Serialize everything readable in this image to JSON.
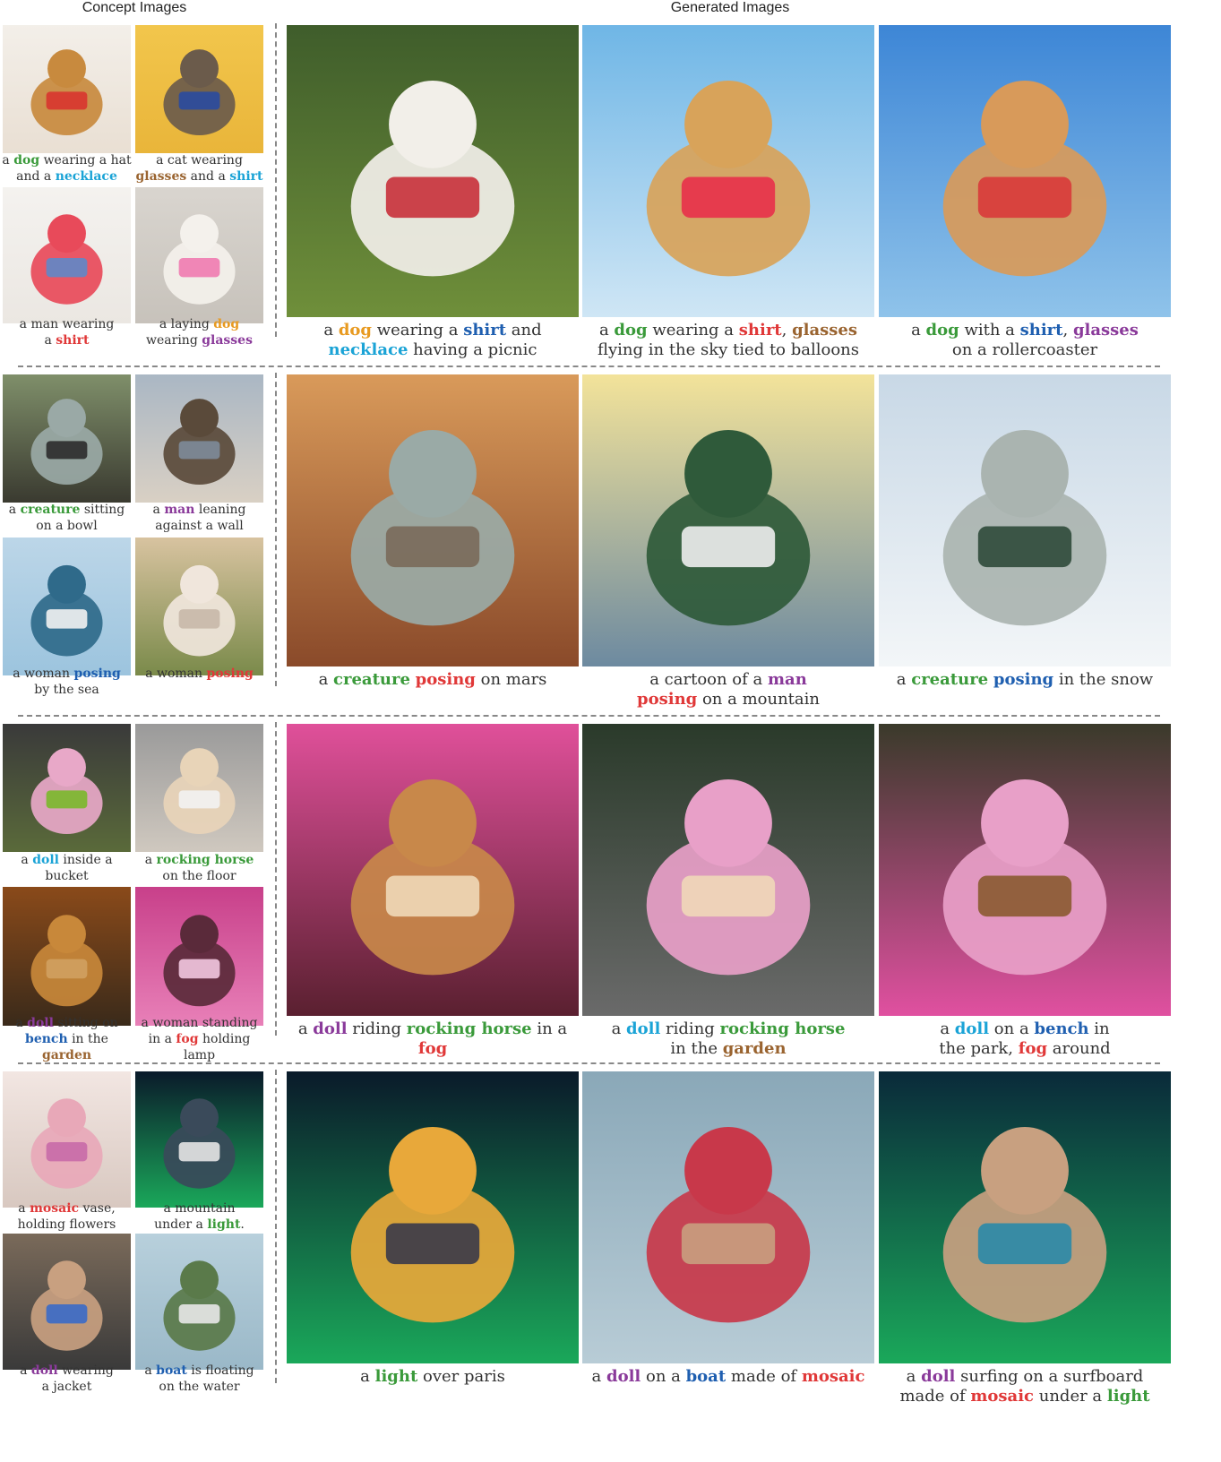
{
  "headers": {
    "concept": "Concept Images",
    "generated": "Generated Images"
  },
  "colors": {
    "green": "#3a9a3a",
    "blue": "#1aa3d6",
    "brown": "#9a6430",
    "red": "#e03838",
    "orange": "#e89a20",
    "purple": "#8a3a9a",
    "darkblue": "#1f5fb0",
    "default": "#333333"
  },
  "rows": [
    {
      "concepts": [
        {
          "scene": "dog-hat",
          "caption": [
            [
              "a ",
              ""
            ],
            [
              "dog",
              "green"
            ],
            [
              " wearing a hat\nand a ",
              ""
            ],
            [
              "necklace",
              "blue"
            ]
          ]
        },
        {
          "scene": "cat-glasses",
          "caption": [
            [
              "a cat wearing\n",
              ""
            ],
            [
              "glasses",
              "brown"
            ],
            [
              " and a ",
              ""
            ],
            [
              "shirt",
              "blue"
            ]
          ]
        },
        {
          "scene": "man-shirt",
          "caption": [
            [
              "a man wearing\na ",
              ""
            ],
            [
              "shirt",
              "red"
            ]
          ]
        },
        {
          "scene": "dog-glasses",
          "caption": [
            [
              "a laying ",
              ""
            ],
            [
              "dog",
              "orange"
            ],
            [
              "\nwearing ",
              ""
            ],
            [
              "glasses",
              "purple"
            ]
          ]
        }
      ],
      "generated": [
        {
          "scene": "dog-picnic",
          "caption": [
            [
              "a ",
              ""
            ],
            [
              "dog",
              "orange"
            ],
            [
              " wearing a ",
              ""
            ],
            [
              "shirt",
              "darkblue"
            ],
            [
              " and\n",
              ""
            ],
            [
              "necklace",
              "blue"
            ],
            [
              " having a picnic",
              ""
            ]
          ]
        },
        {
          "scene": "dog-balloons",
          "caption": [
            [
              "a ",
              ""
            ],
            [
              "dog",
              "green"
            ],
            [
              " wearing a ",
              ""
            ],
            [
              "shirt",
              "red"
            ],
            [
              ", ",
              ""
            ],
            [
              "glasses",
              "brown"
            ],
            [
              "\nflying in the sky tied to balloons",
              ""
            ]
          ]
        },
        {
          "scene": "dog-coaster",
          "caption": [
            [
              "a ",
              ""
            ],
            [
              "dog",
              "green"
            ],
            [
              " with a ",
              ""
            ],
            [
              "shirt",
              "darkblue"
            ],
            [
              ", ",
              ""
            ],
            [
              "glasses",
              "purple"
            ],
            [
              "\non a rollercoaster",
              ""
            ]
          ]
        }
      ]
    },
    {
      "concepts": [
        {
          "scene": "creature-bowl",
          "caption": [
            [
              "a ",
              ""
            ],
            [
              "creature",
              "green"
            ],
            [
              " sitting\non a bowl",
              ""
            ]
          ]
        },
        {
          "scene": "man-wall",
          "caption": [
            [
              "a ",
              ""
            ],
            [
              "man",
              "purple"
            ],
            [
              " leaning\nagainst a wall",
              ""
            ]
          ]
        },
        {
          "scene": "woman-sea",
          "caption": [
            [
              "a woman ",
              ""
            ],
            [
              "posing",
              "darkblue"
            ],
            [
              "\nby the sea",
              ""
            ]
          ]
        },
        {
          "scene": "woman-yoga",
          "caption": [
            [
              "a woman ",
              ""
            ],
            [
              "posing",
              "red"
            ]
          ]
        }
      ],
      "generated": [
        {
          "scene": "creature-mars",
          "caption": [
            [
              "a ",
              ""
            ],
            [
              "creature",
              "green"
            ],
            [
              " ",
              ""
            ],
            [
              "posing",
              "red"
            ],
            [
              " on mars",
              ""
            ]
          ]
        },
        {
          "scene": "man-cartoon",
          "caption": [
            [
              "a cartoon of a ",
              ""
            ],
            [
              "man",
              "purple"
            ],
            [
              "\n",
              ""
            ],
            [
              "posing",
              "red"
            ],
            [
              " on a mountain",
              ""
            ]
          ]
        },
        {
          "scene": "creature-snow",
          "caption": [
            [
              "a ",
              ""
            ],
            [
              "creature",
              "green"
            ],
            [
              " ",
              ""
            ],
            [
              "posing",
              "darkblue"
            ],
            [
              " in the snow",
              ""
            ]
          ]
        }
      ]
    },
    {
      "concepts": [
        {
          "scene": "doll-bucket",
          "caption": [
            [
              "a ",
              ""
            ],
            [
              "doll",
              "blue"
            ],
            [
              " inside a\nbucket",
              ""
            ]
          ]
        },
        {
          "scene": "rocking-horse",
          "caption": [
            [
              "a ",
              ""
            ],
            [
              "rocking horse",
              "green"
            ],
            [
              "\non the floor",
              ""
            ]
          ]
        },
        {
          "scene": "doll-bench",
          "caption": [
            [
              "a ",
              ""
            ],
            [
              "doll",
              "purple"
            ],
            [
              " sitting on\n",
              ""
            ],
            [
              "bench",
              "darkblue"
            ],
            [
              " in the ",
              ""
            ],
            [
              "garden",
              "brown"
            ]
          ]
        },
        {
          "scene": "woman-fog",
          "caption": [
            [
              "a woman standing\nin a ",
              ""
            ],
            [
              "fog",
              "red"
            ],
            [
              " holding lamp",
              ""
            ]
          ]
        }
      ],
      "generated": [
        {
          "scene": "bear-horse-fog",
          "caption": [
            [
              "a ",
              ""
            ],
            [
              "doll",
              "purple"
            ],
            [
              " riding ",
              ""
            ],
            [
              "rocking horse",
              "green"
            ],
            [
              " in a ",
              ""
            ],
            [
              "fog",
              "red"
            ]
          ]
        },
        {
          "scene": "sheep-horse-garden",
          "caption": [
            [
              "a ",
              ""
            ],
            [
              "doll",
              "blue"
            ],
            [
              " riding ",
              ""
            ],
            [
              "rocking horse",
              "green"
            ],
            [
              "\nin the ",
              ""
            ],
            [
              "garden",
              "brown"
            ]
          ]
        },
        {
          "scene": "sheep-bench-fog",
          "caption": [
            [
              "a ",
              ""
            ],
            [
              "doll",
              "blue"
            ],
            [
              " on a ",
              ""
            ],
            [
              "bench",
              "darkblue"
            ],
            [
              " in\nthe park, ",
              ""
            ],
            [
              "fog",
              "red"
            ],
            [
              " around",
              ""
            ]
          ]
        }
      ]
    },
    {
      "concepts": [
        {
          "scene": "mosaic-vase",
          "caption": [
            [
              "a ",
              ""
            ],
            [
              "mosaic",
              "red"
            ],
            [
              " vase,\nholding flowers",
              ""
            ]
          ]
        },
        {
          "scene": "mountain-light",
          "caption": [
            [
              "a mountain\nunder a ",
              ""
            ],
            [
              "light",
              "green"
            ],
            [
              ".",
              ""
            ]
          ]
        },
        {
          "scene": "bunny-jacket",
          "caption": [
            [
              "a ",
              ""
            ],
            [
              "doll",
              "purple"
            ],
            [
              " wearing\na jacket",
              ""
            ]
          ]
        },
        {
          "scene": "boat-water",
          "caption": [
            [
              "a ",
              ""
            ],
            [
              "boat",
              "darkblue"
            ],
            [
              " is floating\non the water",
              ""
            ]
          ]
        }
      ],
      "generated": [
        {
          "scene": "paris-light",
          "caption": [
            [
              "a ",
              ""
            ],
            [
              "light",
              "green"
            ],
            [
              " over paris",
              ""
            ]
          ]
        },
        {
          "scene": "bunny-boat",
          "caption": [
            [
              "a ",
              ""
            ],
            [
              "doll",
              "purple"
            ],
            [
              " on a ",
              ""
            ],
            [
              "boat",
              "darkblue"
            ],
            [
              " made of ",
              ""
            ],
            [
              "mosaic",
              "red"
            ]
          ]
        },
        {
          "scene": "bunny-surf",
          "caption": [
            [
              "a ",
              ""
            ],
            [
              "doll",
              "purple"
            ],
            [
              " surfing on a surfboard\nmade of ",
              ""
            ],
            [
              "mosaic",
              "red"
            ],
            [
              " under a ",
              ""
            ],
            [
              "light",
              "green"
            ]
          ]
        }
      ]
    }
  ]
}
